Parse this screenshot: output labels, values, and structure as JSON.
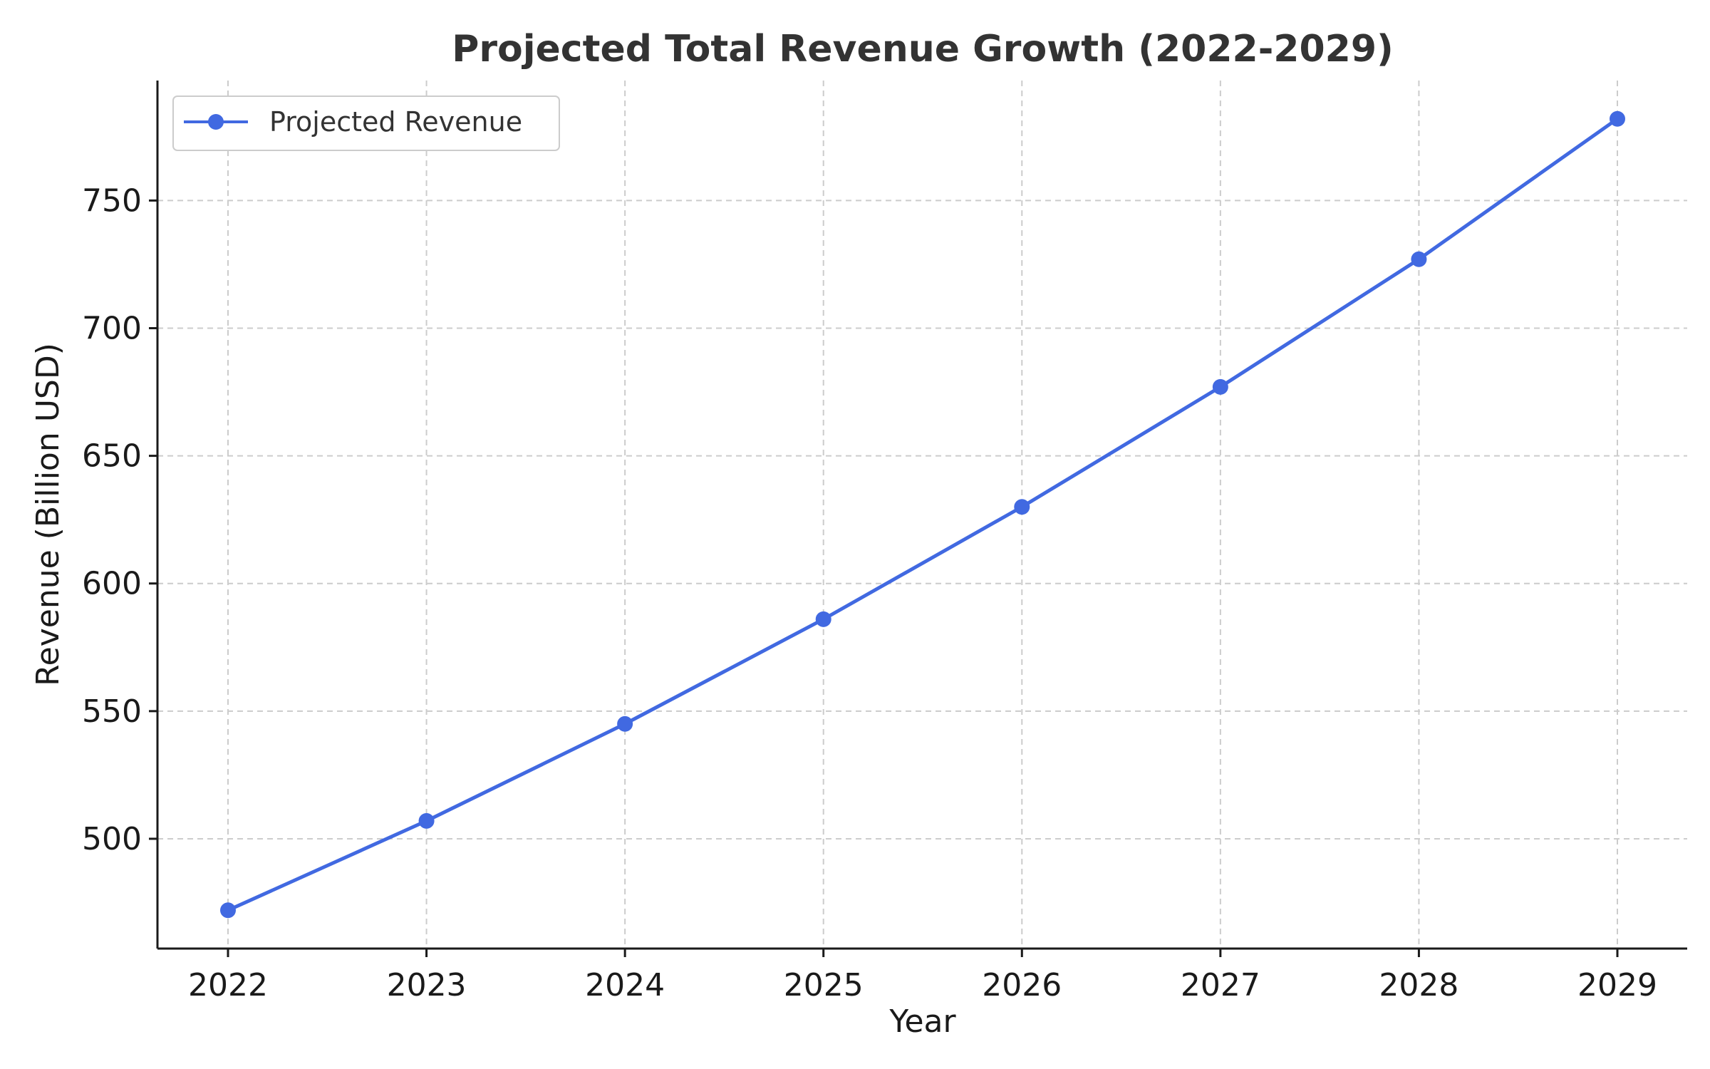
{
  "chart_data": {
    "type": "line",
    "title": "Projected Total Revenue Growth (2022-2029)",
    "xlabel": "Year",
    "ylabel": "Revenue (Billion USD)",
    "categories": [
      "2022",
      "2023",
      "2024",
      "2025",
      "2026",
      "2027",
      "2028",
      "2029"
    ],
    "series": [
      {
        "name": "Projected Revenue",
        "color": "#4169e1",
        "marker": "circle",
        "values": [
          472,
          507,
          545,
          586,
          630,
          677,
          727,
          782
        ]
      }
    ],
    "yticks": [
      500,
      550,
      600,
      650,
      700,
      750
    ],
    "ylim": [
      457,
      797
    ],
    "grid": true,
    "grid_style": "dashed",
    "legend_position": "top-left"
  }
}
